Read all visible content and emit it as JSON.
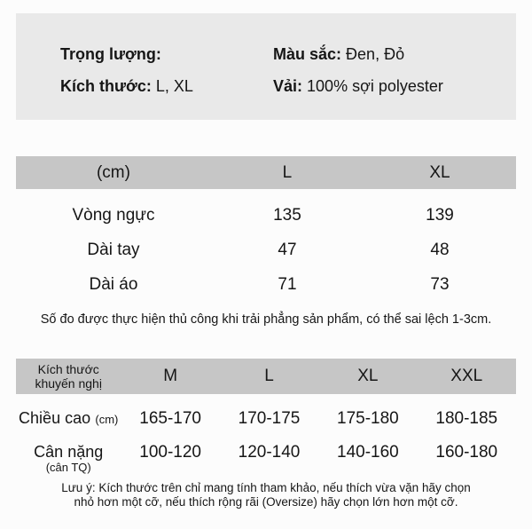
{
  "info_box": {
    "rows": [
      {
        "left_label": "Trọng lượng:",
        "left_value": "",
        "right_label": "Màu sắc:",
        "right_value": "Đen, Đỏ"
      },
      {
        "left_label": "Kích thước:",
        "left_value": "L, XL",
        "right_label": "Vải:",
        "right_value": "100% sợi polyester"
      }
    ]
  },
  "size_table": {
    "headers": [
      "(cm)",
      "L",
      "XL"
    ],
    "rows": [
      {
        "label": "Vòng ngực",
        "values": [
          "135",
          "139"
        ]
      },
      {
        "label": "Dài tay",
        "values": [
          "47",
          "48"
        ]
      },
      {
        "label": "Dài áo",
        "values": [
          "71",
          "73"
        ]
      }
    ],
    "note": "Số đo được thực hiện thủ công khi trải phẳng sản phẩm, có thể sai lệch 1-3cm."
  },
  "recommend_table": {
    "label_line1": "Kích thước",
    "label_line2": "khuyến nghị",
    "headers": [
      "M",
      "L",
      "XL",
      "XXL"
    ],
    "rows": [
      {
        "label": "Chiều cao",
        "label_sub": "(cm)",
        "values": [
          "165-170",
          "170-175",
          "175-180",
          "180-185"
        ]
      },
      {
        "label": "Cân nặng",
        "label_sub": "(cân TQ)",
        "values": [
          "100-120",
          "120-140",
          "140-160",
          "160-180"
        ]
      }
    ],
    "note_line1": "Lưu ý: Kích thước trên chỉ mang tính tham khảo, nếu thích vừa vặn hãy chọn",
    "note_line2": "nhỏ hơn một cỡ, nếu thích rộng rãi (Oversize) hãy chọn lớn hơn một cỡ."
  },
  "colors": {
    "page_background": "#fcfcfc",
    "info_box_background": "#e9e9e9",
    "table_header_background": "#c6c6c6",
    "text": "#161616"
  }
}
